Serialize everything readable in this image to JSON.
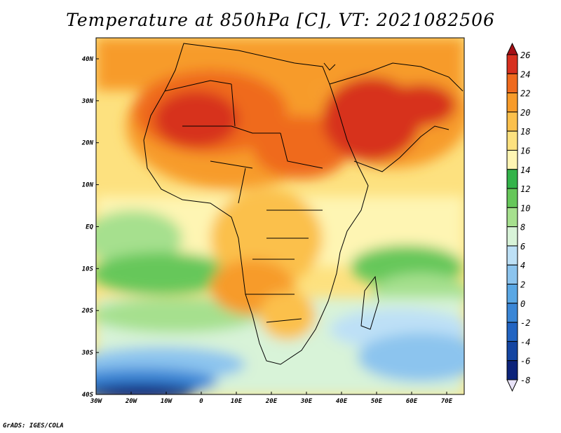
{
  "title": "Temperature at 850hPa [C], VT: 2021082506",
  "footer": "GrADS: IGES/COLA",
  "map": {
    "lat_labels": [
      "40N",
      "30N",
      "20N",
      "10N",
      "EQ",
      "10S",
      "20S",
      "30S",
      "40S"
    ],
    "lon_labels": [
      "30W",
      "20W",
      "10W",
      "0",
      "10E",
      "20E",
      "30E",
      "40E",
      "50E",
      "60E",
      "70E"
    ],
    "extent": {
      "lon": [
        -30,
        75
      ],
      "lat": [
        -40,
        45
      ]
    }
  },
  "colorbar": {
    "labels": [
      "26",
      "24",
      "22",
      "20",
      "18",
      "16",
      "14",
      "12",
      "10",
      "8",
      "6",
      "4",
      "2",
      "0",
      "-2",
      "-4",
      "-6",
      "-8"
    ],
    "colors": [
      "#a50f15",
      "#d7301f",
      "#ef6a1e",
      "#f79b2a",
      "#fbc04c",
      "#fde17f",
      "#fef5b3",
      "#33b34a",
      "#66c75a",
      "#a6e08e",
      "#d8f3d8",
      "#bde0f6",
      "#8cc4ee",
      "#5aa7e4",
      "#3a86d6",
      "#2264c2",
      "#1445a2",
      "#0c237a",
      "#e8e3f8"
    ]
  }
}
